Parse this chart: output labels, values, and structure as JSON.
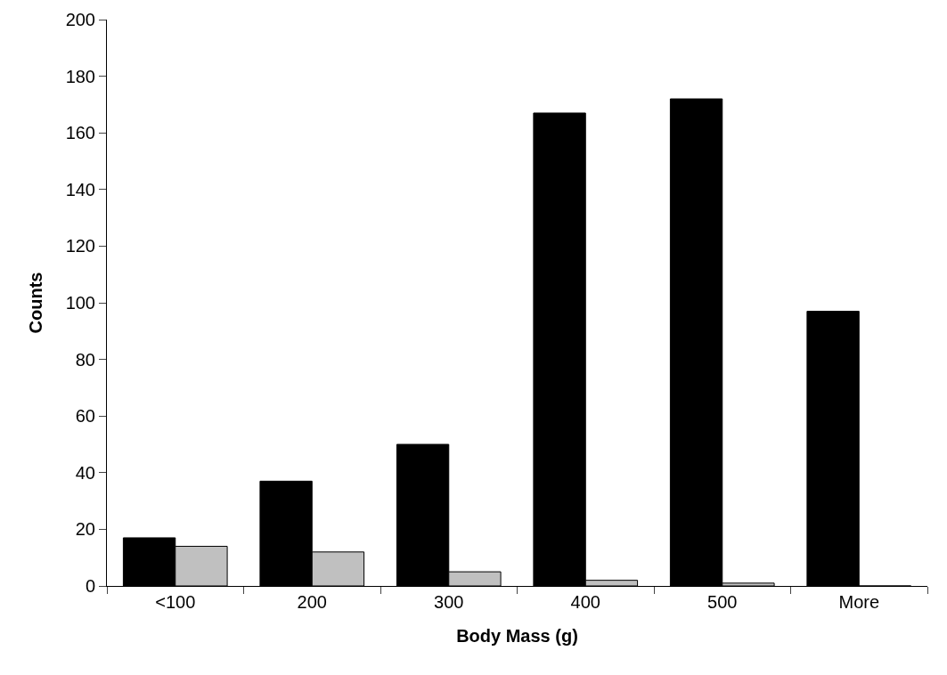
{
  "chart_data": {
    "type": "bar",
    "xlabel": "Body Mass (g)",
    "ylabel": "Counts",
    "categories": [
      "<100",
      "200",
      "300",
      "400",
      "500",
      "More"
    ],
    "series": [
      {
        "color": "#000000",
        "values": [
          17,
          37,
          50,
          167,
          172,
          97
        ]
      },
      {
        "color": "#c0c0c0",
        "values": [
          14,
          12,
          5,
          2,
          1,
          0
        ]
      }
    ],
    "ylim": [
      0,
      200
    ],
    "yticks": [
      0,
      20,
      40,
      60,
      80,
      100,
      120,
      140,
      160,
      180,
      200
    ],
    "grid": false
  }
}
